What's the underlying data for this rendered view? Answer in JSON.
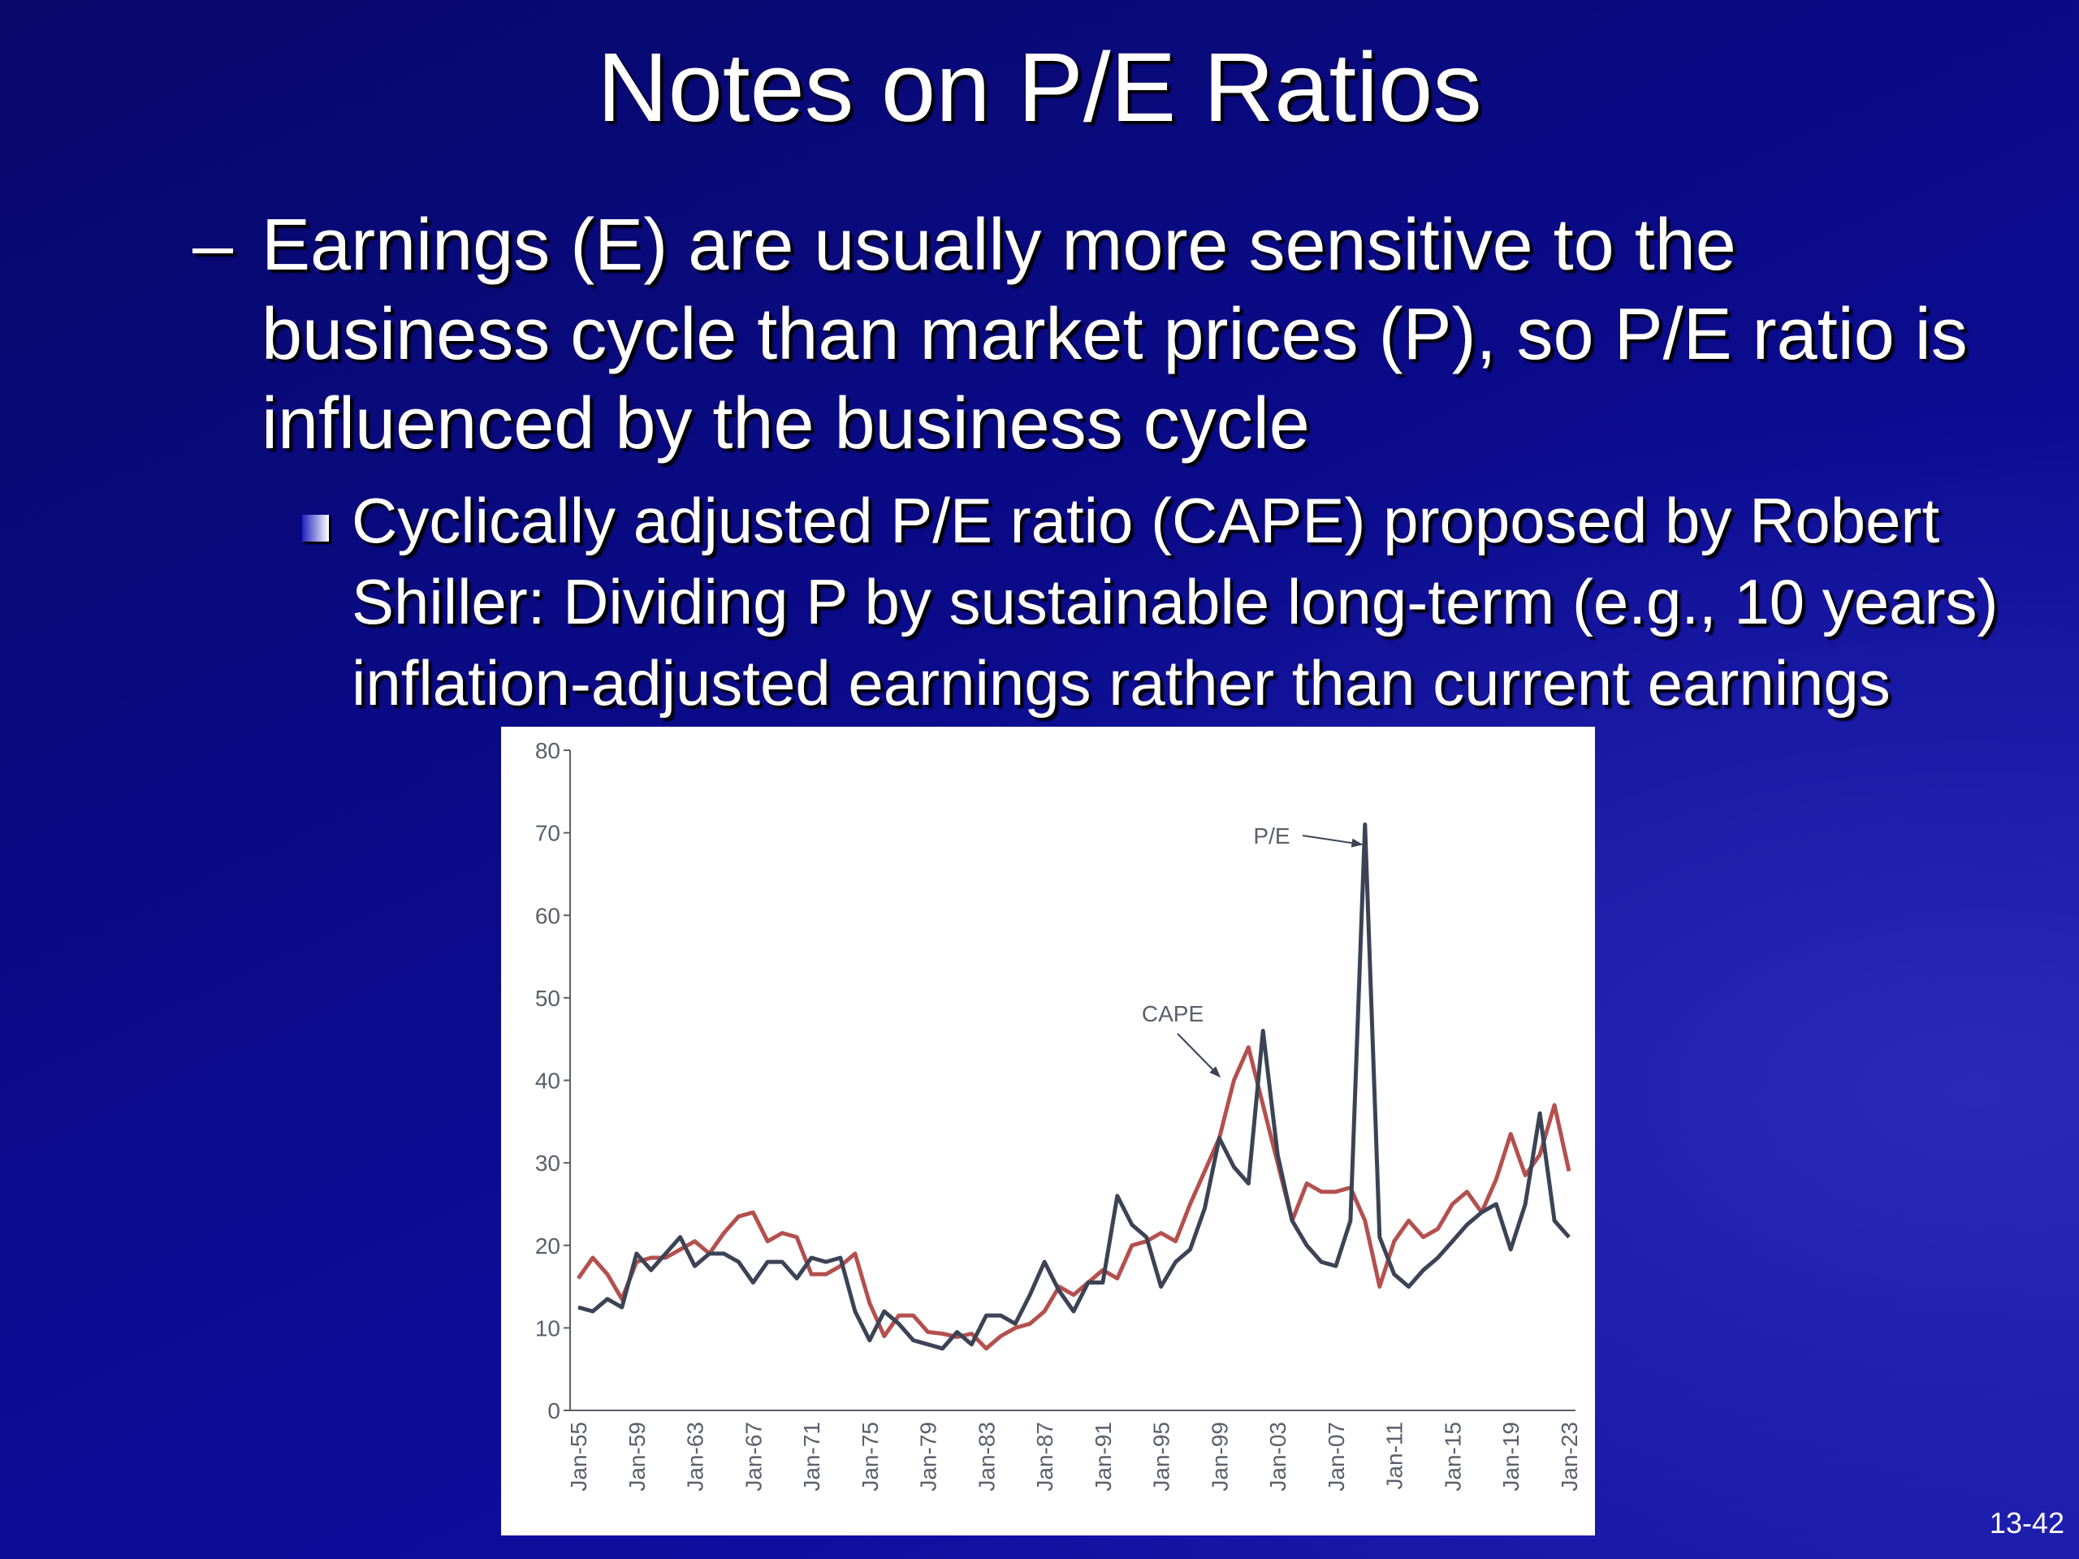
{
  "slide": {
    "title": "Notes on P/E Ratios",
    "bullet": {
      "marker": "–",
      "text": "Earnings (E) are usually more sensitive to the business cycle than market prices (P), so P/E ratio is influenced by the business cycle"
    },
    "sub_bullet": "Cyclically adjusted P/E ratio (CAPE) proposed by Robert Shiller: Dividing P by sustainable long-term (e.g., 10 years) inflation-adjusted earnings rather than current earnings",
    "page_number": "13-42"
  },
  "chart_data": {
    "type": "line",
    "categories": [
      "Jan-55",
      null,
      null,
      null,
      "Jan-59",
      null,
      null,
      null,
      "Jan-63",
      null,
      null,
      null,
      "Jan-67",
      null,
      null,
      null,
      "Jan-71",
      null,
      null,
      null,
      "Jan-75",
      null,
      null,
      null,
      "Jan-79",
      null,
      null,
      null,
      "Jan-83",
      null,
      null,
      null,
      "Jan-87",
      null,
      null,
      null,
      "Jan-91",
      null,
      null,
      null,
      "Jan-95",
      null,
      null,
      null,
      "Jan-99",
      null,
      null,
      null,
      "Jan-03",
      null,
      null,
      null,
      "Jan-07",
      null,
      null,
      null,
      "Jan-11",
      null,
      null,
      null,
      "Jan-15",
      null,
      null,
      null,
      "Jan-19",
      null,
      null,
      null,
      "Jan-23"
    ],
    "series": [
      {
        "name": "P/E",
        "color": "#3b4355",
        "values": [
          12.5,
          12,
          13.5,
          12.5,
          19,
          17,
          19,
          21,
          17.5,
          19,
          19,
          18,
          15.5,
          18,
          18,
          16,
          18.5,
          18,
          18.5,
          12,
          8.5,
          12,
          10.5,
          8.5,
          8,
          7.5,
          9.5,
          8,
          11.5,
          11.5,
          10.5,
          14,
          18,
          14.5,
          12,
          15.5,
          15.5,
          26,
          22.5,
          21,
          15,
          18,
          19.5,
          24.5,
          33,
          29.5,
          27.5,
          46,
          31,
          23,
          20,
          18,
          17.5,
          23,
          71,
          21,
          16.5,
          15,
          17,
          18.5,
          20.5,
          22.5,
          24,
          25,
          19.5,
          25,
          36,
          23,
          21
        ]
      },
      {
        "name": "CAPE",
        "color": "#b4504e",
        "values": [
          16,
          18.5,
          16.5,
          13.5,
          18,
          18.5,
          18.5,
          19.5,
          20.5,
          19,
          21.5,
          23.5,
          24,
          20.5,
          21.5,
          21,
          16.5,
          16.5,
          17.5,
          19,
          13,
          9,
          11.5,
          11.5,
          9.5,
          9.3,
          8.9,
          9.3,
          7.5,
          9,
          10,
          10.5,
          12,
          15,
          14,
          15.5,
          17,
          16,
          20,
          20.5,
          21.5,
          20.5,
          25,
          29,
          33,
          40,
          44,
          37,
          30,
          23,
          27.5,
          26.5,
          26.5,
          27,
          23,
          15,
          20.5,
          23,
          21,
          22,
          25,
          26.5,
          24,
          28,
          33.5,
          28.5,
          31,
          37,
          29
        ]
      }
    ],
    "ylim": [
      0,
      80
    ],
    "yticks": [
      0,
      10,
      20,
      30,
      40,
      50,
      60,
      70,
      80
    ],
    "grid": false
  }
}
